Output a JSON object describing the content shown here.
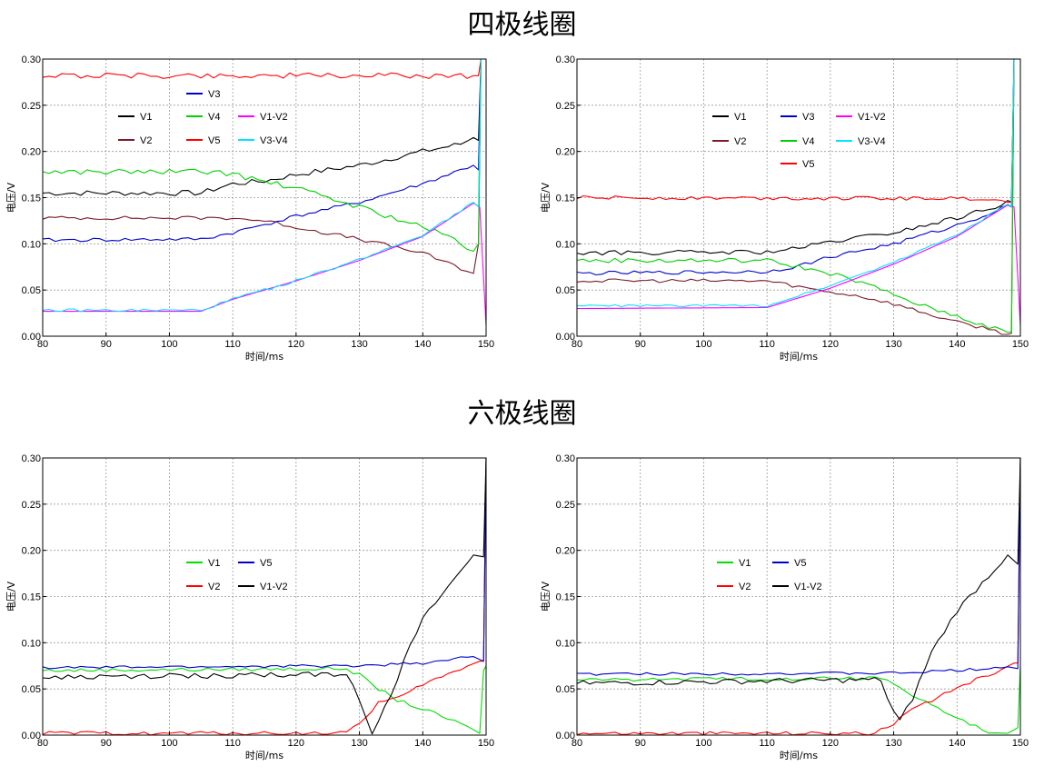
{
  "titles": {
    "quadrupole": "四极线圈",
    "hexapole": "六极线圈"
  },
  "chart_data": [
    {
      "type": "line",
      "section": "四极线圈",
      "xlabel": "时间/ms",
      "ylabel": "电压/V",
      "xlim": [
        80,
        150
      ],
      "ylim": [
        0,
        0.3
      ],
      "xticks": [
        "80",
        "90",
        "100",
        "110",
        "120",
        "130",
        "140",
        "150"
      ],
      "yticks": [
        "0.00",
        "0.05",
        "0.10",
        "0.15",
        "0.20",
        "0.25",
        "0.30"
      ],
      "grid": true,
      "legend_location": "upper-left-center",
      "series": [
        {
          "name": "V1",
          "color": "#000000",
          "noise": 0.003,
          "x": [
            80,
            105,
            110,
            115,
            120,
            130,
            140,
            146,
            148,
            148.8,
            149.2
          ],
          "y": [
            0.155,
            0.155,
            0.165,
            0.168,
            0.175,
            0.185,
            0.2,
            0.208,
            0.215,
            0.212,
            0.3
          ]
        },
        {
          "name": "V2",
          "color": "#7a1a2a",
          "noise": 0.002,
          "x": [
            80,
            110,
            115,
            120,
            130,
            140,
            148,
            148.8,
            149.2
          ],
          "y": [
            0.128,
            0.128,
            0.125,
            0.118,
            0.105,
            0.09,
            0.068,
            0.1,
            0.3
          ]
        },
        {
          "name": "V3",
          "color": "#0000cc",
          "noise": 0.002,
          "x": [
            80,
            105,
            110,
            120,
            130,
            140,
            148,
            148.8,
            149.2
          ],
          "y": [
            0.104,
            0.105,
            0.112,
            0.13,
            0.145,
            0.165,
            0.185,
            0.18,
            0.3
          ]
        },
        {
          "name": "V4",
          "color": "#00d000",
          "noise": 0.003,
          "x": [
            80,
            108,
            112,
            120,
            130,
            140,
            145,
            148,
            148.8,
            149.2
          ],
          "y": [
            0.178,
            0.178,
            0.172,
            0.16,
            0.14,
            0.118,
            0.105,
            0.092,
            0.1,
            0.3
          ]
        },
        {
          "name": "V5",
          "color": "#ff0000",
          "noise": 0.003,
          "x": [
            80,
            148,
            148.8,
            149.2
          ],
          "y": [
            0.282,
            0.282,
            0.282,
            0.3
          ]
        },
        {
          "name": "V1-V2",
          "color": "#ff00ff",
          "noise": 0.0,
          "x": [
            80,
            105,
            110,
            120,
            130,
            140,
            148,
            149,
            150
          ],
          "y": [
            0.027,
            0.027,
            0.04,
            0.06,
            0.082,
            0.108,
            0.144,
            0.14,
            0.012
          ]
        },
        {
          "name": "V3-V4",
          "color": "#00e5ff",
          "noise": 0.0015,
          "x": [
            80,
            105,
            110,
            120,
            130,
            140,
            148,
            148.8,
            149.2
          ],
          "y": [
            0.028,
            0.028,
            0.04,
            0.06,
            0.083,
            0.11,
            0.145,
            0.14,
            0.3
          ]
        }
      ]
    },
    {
      "type": "line",
      "section": "四极线圈",
      "xlabel": "时间/ms",
      "ylabel": "电压/V",
      "xlim": [
        80,
        150
      ],
      "ylim": [
        0,
        0.3
      ],
      "xticks": [
        "80",
        "90",
        "100",
        "110",
        "120",
        "130",
        "140",
        "150"
      ],
      "yticks": [
        "0.00",
        "0.05",
        "0.10",
        "0.15",
        "0.20",
        "0.25",
        "0.30"
      ],
      "grid": true,
      "legend_location": "upper-center",
      "series": [
        {
          "name": "V1",
          "color": "#000000",
          "noise": 0.0025,
          "x": [
            80,
            110,
            115,
            120,
            130,
            140,
            146,
            148,
            148.6,
            149
          ],
          "y": [
            0.09,
            0.091,
            0.095,
            0.102,
            0.112,
            0.128,
            0.14,
            0.147,
            0.145,
            0.3
          ]
        },
        {
          "name": "V2",
          "color": "#7a1a2a",
          "noise": 0.002,
          "x": [
            80,
            110,
            118,
            125,
            130,
            135,
            140,
            145,
            148,
            148.6,
            149
          ],
          "y": [
            0.06,
            0.06,
            0.05,
            0.043,
            0.035,
            0.025,
            0.015,
            0.008,
            0.002,
            0.003,
            0.3
          ]
        },
        {
          "name": "V3",
          "color": "#0000cc",
          "noise": 0.002,
          "x": [
            80,
            110,
            115,
            120,
            130,
            140,
            146,
            148,
            148.6,
            149
          ],
          "y": [
            0.068,
            0.07,
            0.076,
            0.086,
            0.1,
            0.12,
            0.135,
            0.142,
            0.14,
            0.3
          ]
        },
        {
          "name": "V4",
          "color": "#00d000",
          "noise": 0.0025,
          "x": [
            80,
            110,
            115,
            120,
            125,
            130,
            135,
            140,
            145,
            148,
            148.6,
            149
          ],
          "y": [
            0.082,
            0.082,
            0.075,
            0.068,
            0.058,
            0.045,
            0.032,
            0.022,
            0.01,
            0.004,
            0.005,
            0.3
          ]
        },
        {
          "name": "V5",
          "color": "#ff0000",
          "noise": 0.002,
          "x": [
            80,
            145,
            148,
            148.6,
            149
          ],
          "y": [
            0.15,
            0.149,
            0.145,
            0.145,
            0.3
          ]
        },
        {
          "name": "V1-V2",
          "color": "#ff00ff",
          "noise": 0.0,
          "x": [
            80,
            110,
            120,
            130,
            140,
            148,
            149,
            150
          ],
          "y": [
            0.03,
            0.031,
            0.052,
            0.078,
            0.108,
            0.142,
            0.14,
            0.012
          ]
        },
        {
          "name": "V3-V4",
          "color": "#00e5ff",
          "noise": 0.0012,
          "x": [
            80,
            110,
            120,
            130,
            140,
            148,
            148.6,
            149
          ],
          "y": [
            0.033,
            0.033,
            0.055,
            0.08,
            0.11,
            0.143,
            0.14,
            0.3
          ]
        }
      ]
    },
    {
      "type": "line",
      "section": "六极线圈",
      "xlabel": "时间/ms",
      "ylabel": "电压/V",
      "xlim": [
        80,
        150
      ],
      "ylim": [
        0,
        0.3
      ],
      "xticks": [
        "80",
        "90",
        "100",
        "110",
        "120",
        "130",
        "140",
        "150"
      ],
      "yticks": [
        "0.00",
        "0.05",
        "0.10",
        "0.15",
        "0.20",
        "0.25",
        "0.30"
      ],
      "grid": true,
      "legend_location": "center",
      "series": [
        {
          "name": "V1",
          "color": "#00dd00",
          "noise": 0.002,
          "x": [
            80,
            128,
            130,
            133,
            136,
            140,
            145,
            149,
            149.6,
            150
          ],
          "y": [
            0.07,
            0.072,
            0.065,
            0.05,
            0.038,
            0.028,
            0.015,
            0.002,
            0.07,
            0.075
          ]
        },
        {
          "name": "V2",
          "color": "#ff0000",
          "noise": 0.002,
          "x": [
            80,
            127,
            130,
            133,
            137,
            140,
            145,
            149,
            149.6,
            150
          ],
          "y": [
            0.002,
            0.002,
            0.012,
            0.035,
            0.042,
            0.055,
            0.068,
            0.08,
            0.08,
            0.3
          ]
        },
        {
          "name": "V5",
          "color": "#0000cc",
          "noise": 0.0015,
          "x": [
            80,
            130,
            140,
            148,
            149.6,
            150
          ],
          "y": [
            0.073,
            0.075,
            0.078,
            0.085,
            0.08,
            0.3
          ]
        },
        {
          "name": "V1-V2",
          "color": "#000000",
          "noise": 0.003,
          "x": [
            80,
            128,
            130,
            132,
            135,
            138,
            140,
            144,
            148,
            149.6,
            150
          ],
          "y": [
            0.062,
            0.066,
            0.04,
            0.003,
            0.045,
            0.095,
            0.125,
            0.16,
            0.195,
            0.193,
            0.3
          ]
        }
      ]
    },
    {
      "type": "line",
      "section": "六极线圈",
      "xlabel": "时间/ms",
      "ylabel": "电压/V",
      "xlim": [
        80,
        150
      ],
      "ylim": [
        0,
        0.3
      ],
      "xticks": [
        "80",
        "90",
        "100",
        "110",
        "120",
        "130",
        "140",
        "150"
      ],
      "yticks": [
        "0.00",
        "0.05",
        "0.10",
        "0.15",
        "0.20",
        "0.25",
        "0.30"
      ],
      "grid": true,
      "legend_location": "center",
      "series": [
        {
          "name": "V1",
          "color": "#00dd00",
          "noise": 0.002,
          "x": [
            80,
            128,
            130,
            134,
            138,
            142,
            145,
            148,
            149.6,
            150
          ],
          "y": [
            0.06,
            0.062,
            0.055,
            0.04,
            0.025,
            0.012,
            0.003,
            0.002,
            0.008,
            0.075
          ]
        },
        {
          "name": "V2",
          "color": "#ff0000",
          "noise": 0.002,
          "x": [
            80,
            127,
            130,
            133,
            137,
            140,
            145,
            149,
            149.6,
            150
          ],
          "y": [
            0.002,
            0.002,
            0.012,
            0.028,
            0.04,
            0.052,
            0.065,
            0.078,
            0.078,
            0.3
          ]
        },
        {
          "name": "V5",
          "color": "#0000cc",
          "noise": 0.0015,
          "x": [
            80,
            130,
            140,
            148,
            149.6,
            150
          ],
          "y": [
            0.066,
            0.067,
            0.07,
            0.074,
            0.072,
            0.3
          ]
        },
        {
          "name": "V1-V2",
          "color": "#000000",
          "noise": 0.003,
          "x": [
            80,
            128,
            129.5,
            131,
            133,
            136,
            140,
            144,
            148,
            149.6,
            150
          ],
          "y": [
            0.056,
            0.06,
            0.03,
            0.015,
            0.04,
            0.09,
            0.135,
            0.165,
            0.195,
            0.185,
            0.3
          ]
        }
      ]
    }
  ]
}
